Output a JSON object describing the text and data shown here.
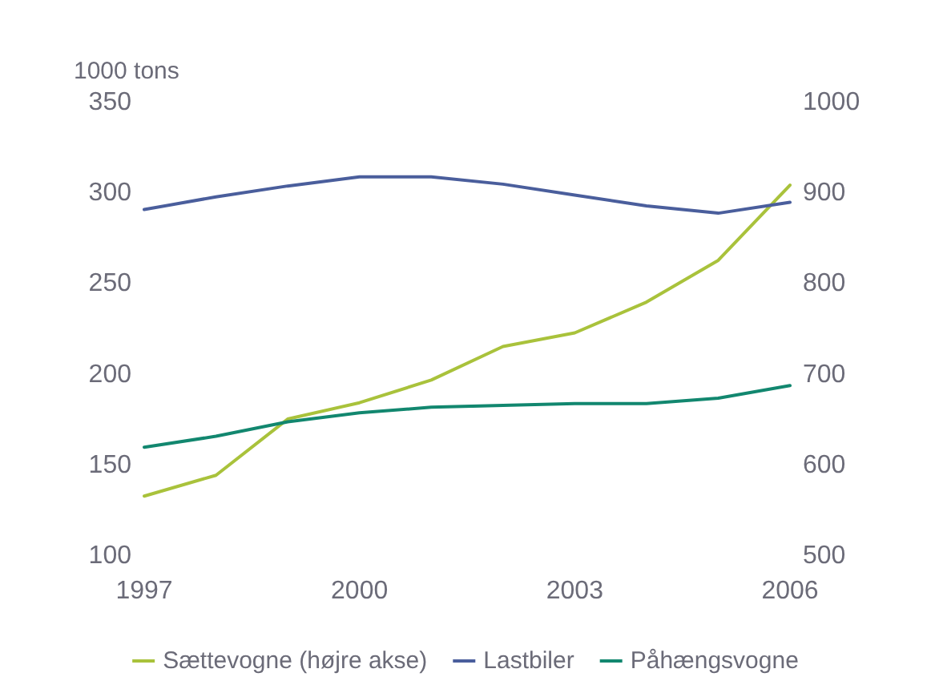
{
  "chart_data": {
    "type": "line",
    "ylabel": "1000 tons",
    "x": [
      1997,
      1998,
      1999,
      2000,
      2001,
      2002,
      2003,
      2004,
      2005,
      2006
    ],
    "xlim": [
      1997,
      2006
    ],
    "xticks": [
      1997,
      2000,
      2003,
      2006
    ],
    "ylim": [
      100,
      350
    ],
    "yticks": [
      100,
      150,
      200,
      250,
      300,
      350
    ],
    "y2lim": [
      500,
      1000
    ],
    "y2ticks": [
      500,
      600,
      700,
      800,
      900,
      1000
    ],
    "grid": false,
    "legend": "bottom",
    "marker": "none",
    "line_style": "solid",
    "series": [
      {
        "name": "Sættevogne (højre akse)",
        "color": "#a9c23b",
        "axis": "y2",
        "values": [
          566,
          589,
          651,
          669,
          694,
          731,
          746,
          780,
          826,
          909
        ]
      },
      {
        "name": "Lastbiler",
        "color": "#4a5e9c",
        "values": [
          291,
          298,
          304,
          309,
          309,
          305,
          299,
          293,
          289,
          295
        ]
      },
      {
        "name": "Påhængsvogne",
        "color": "#12876f",
        "values": [
          160,
          166,
          174,
          179,
          182,
          183,
          184,
          184,
          187,
          194
        ]
      }
    ]
  }
}
